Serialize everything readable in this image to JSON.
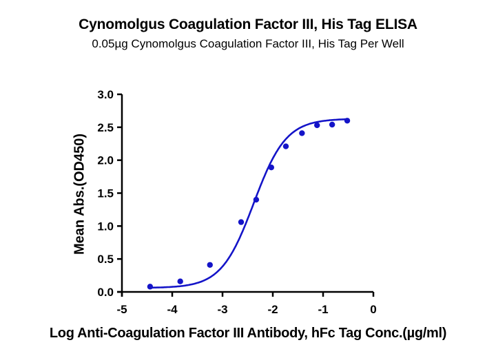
{
  "chart_data": {
    "type": "scatter",
    "title": "Cynomolgus Coagulation Factor III, His Tag ELISA",
    "subtitle": "0.05µg Cynomolgus Coagulation Factor III, His Tag Per Well",
    "xlabel": "Log Anti-Coagulation Factor III Antibody, hFc Tag Conc.(µg/ml)",
    "ylabel": "Mean Abs.(OD450)",
    "xlim": [
      -5,
      0
    ],
    "ylim": [
      0,
      3.0
    ],
    "x_ticks": [
      "-5",
      "-4",
      "-3",
      "-2",
      "-1",
      "0"
    ],
    "y_ticks": [
      "0.0",
      "0.5",
      "1.0",
      "1.5",
      "2.0",
      "2.5",
      "3.0"
    ],
    "grid": false,
    "legend": null,
    "series": [
      {
        "name": "Anti-Coagulation Factor III Antibody, hFc Tag",
        "color": "#1414c8",
        "fit": "4-parameter logistic",
        "x": [
          -4.44,
          -3.84,
          -3.25,
          -2.63,
          -2.33,
          -2.03,
          -1.74,
          -1.42,
          -1.12,
          -0.82,
          -0.52
        ],
        "y": [
          0.08,
          0.16,
          0.41,
          1.06,
          1.4,
          1.89,
          2.21,
          2.41,
          2.53,
          2.54,
          2.6
        ]
      }
    ]
  },
  "labels": {
    "title": "Cynomolgus Coagulation Factor III, His Tag ELISA",
    "subtitle": "0.05µg Cynomolgus Coagulation Factor III, His Tag Per Well",
    "xlabel": "Log Anti-Coagulation Factor III Antibody, hFc Tag Conc.(µg/ml)",
    "ylabel": "Mean Abs.(OD450)"
  }
}
